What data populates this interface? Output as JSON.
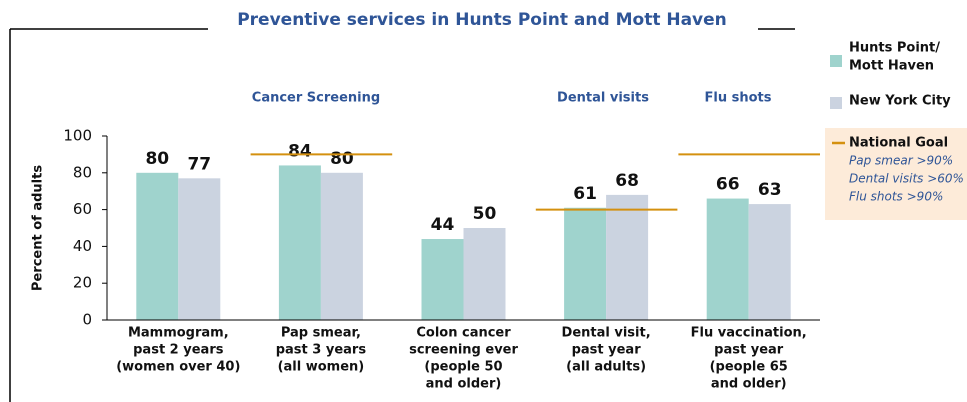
{
  "chart_data": {
    "type": "bar",
    "title": "Preventive services in Hunts Point and Mott Haven",
    "y_label": "Percent of adults",
    "categories": [
      [
        "Mammogram,",
        "past 2 years",
        "(women over 40)"
      ],
      [
        "Pap smear,",
        "past 3 years",
        "(all women)"
      ],
      [
        "Colon cancer",
        "screening ever",
        "(people 50",
        "and older)"
      ],
      [
        "Dental visit,",
        "past year",
        "(all adults)"
      ],
      [
        "Flu vaccination,",
        "past year",
        "(people 65",
        "and older)"
      ]
    ],
    "groups": [
      "Cancer Screening",
      "Dental visits",
      "Flu shots"
    ],
    "series": [
      {
        "name": [
          "Hunts Point/",
          "Mott Haven"
        ],
        "color": "#9fd3cd",
        "values": [
          80,
          84,
          44,
          61,
          66
        ]
      },
      {
        "name": [
          "New York City"
        ],
        "color": "#cbd3e0",
        "values": [
          77,
          80,
          50,
          68,
          63
        ]
      }
    ],
    "goal": {
      "name": "National Goal",
      "color": "#d4900f",
      "values": [
        null,
        90,
        null,
        60,
        90
      ],
      "notes": [
        "Pap smear >90%",
        "Dental visits >60%",
        "Flu shots >90%"
      ]
    },
    "ylim": [
      0,
      100
    ],
    "yticks": [
      0,
      20,
      40,
      60,
      80,
      100
    ]
  }
}
